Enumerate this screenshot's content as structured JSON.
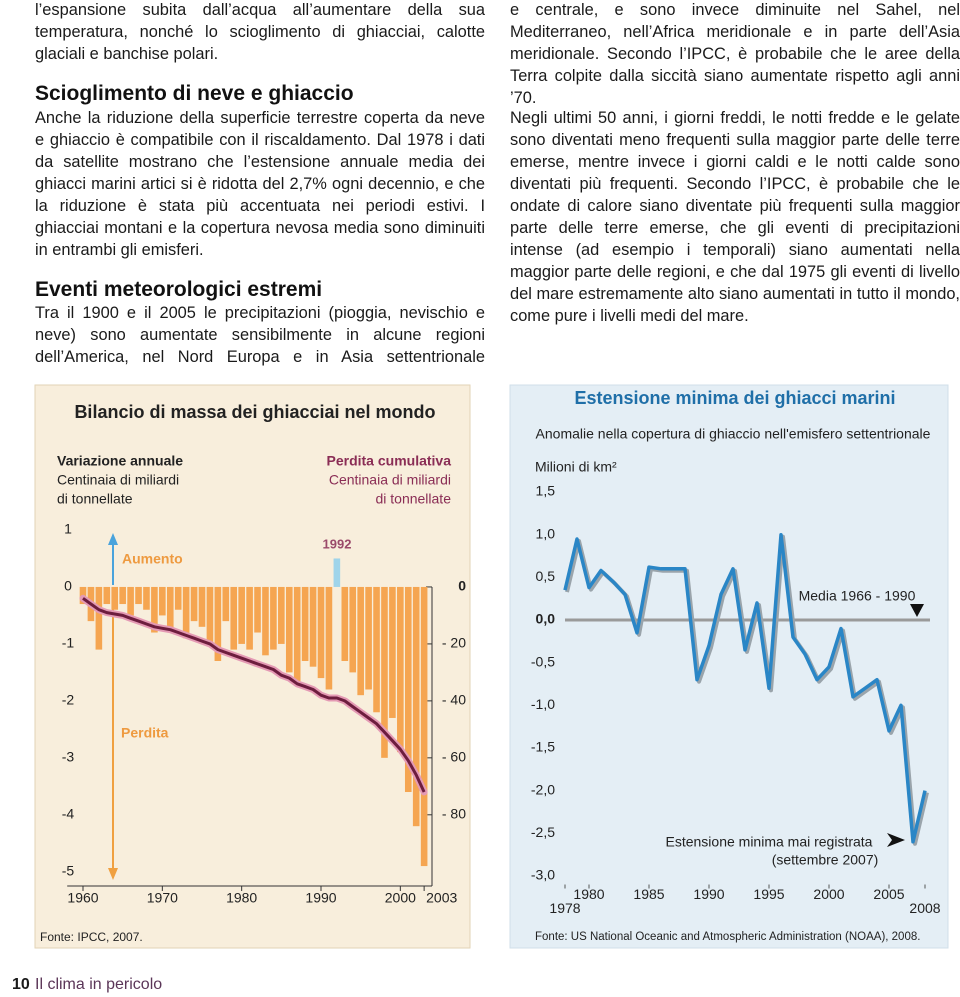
{
  "left_column": {
    "intro": "l’espansione subita dall’acqua all’aumentare della sua temperatura, nonché lo scioglimento di ghiacciai, calotte glaciali e banchise polari.",
    "sections": [
      {
        "heading": "Scioglimento di neve e ghiaccio",
        "text": "Anche la riduzione della superficie terrestre coperta da neve e ghiaccio è compatibile con il riscaldamento. Dal 1978 i dati da satellite mostrano che l’estensione annuale media dei ghiacci marini artici si è ridotta del 2,7% ogni decennio, e che la riduzione è stata più accentuata nei periodi estivi. I ghiacciai montani e la copertura nevosa media sono diminuiti in entrambi gli emisferi."
      },
      {
        "heading": "Eventi meteorologici estremi",
        "text": "Tra il 1900 e il 2005 le precipitazioni (pioggia, nevischio e neve) sono aumentate sensibilmente in alcune regioni dell’America, nel Nord Europa e in Asia settentrionale"
      }
    ]
  },
  "right_column": {
    "paragraphs": [
      "e centrale, e sono invece diminuite nel Sahel, nel Mediterraneo, nell’Africa meridionale e in parte dell’Asia meridionale. Secondo l’IPCC, è probabile che le aree della Terra colpite dalla siccità siano aumentate rispetto agli anni ’70.",
      "Negli ultimi 50 anni, i giorni freddi, le notti fredde e le gelate sono diventati meno frequenti sulla maggior parte delle terre emerse, mentre invece i giorni caldi e le notti calde sono diventati più frequenti. Secondo l’IPCC, è probabile che le ondate di calore siano diventate più frequenti sulla maggior parte delle terre emerse, che gli eventi di precipitazioni intense (ad esempio i temporali) siano aumentati nella maggior parte delle regioni, e che dal 1975 gli eventi di livello del mare estremamente alto siano aumentati in tutto il mondo, come pure i livelli medi del mare."
    ]
  },
  "chart_data": [
    {
      "type": "bar",
      "title": "Bilancio di massa dei ghiacciai nel mondo",
      "y_unit": [
        "Centinaia di miliardi",
        "di tonnellate"
      ],
      "y2_unit": [
        "Centinaia di miliardi",
        "di tonnellate"
      ],
      "x": [
        1960,
        1961,
        1962,
        1963,
        1964,
        1965,
        1966,
        1967,
        1968,
        1969,
        1970,
        1971,
        1972,
        1973,
        1974,
        1975,
        1976,
        1977,
        1978,
        1979,
        1980,
        1981,
        1982,
        1983,
        1984,
        1985,
        1986,
        1987,
        1988,
        1989,
        1990,
        1991,
        1992,
        1993,
        1994,
        1995,
        1996,
        1997,
        1998,
        1999,
        2000,
        2001,
        2002,
        2003
      ],
      "xlim": [
        1957,
        2005
      ],
      "xticks": [
        1960,
        1970,
        1980,
        1990,
        2000,
        2003
      ],
      "ylim": [
        -5.25,
        1.2
      ],
      "yticks": [
        1,
        0,
        -1,
        -2,
        -3,
        -4,
        -5
      ],
      "y2lim": [
        -105,
        24
      ],
      "y2ticks": [
        0,
        {
          "value": -20,
          "label": "- 20"
        },
        {
          "value": -40,
          "label": "- 40"
        },
        {
          "value": -60,
          "label": "- 60"
        },
        {
          "value": -80,
          "label": "- 80"
        }
      ],
      "positive_color": "#9fd4ea",
      "series": [
        {
          "name": "Variazione annuale",
          "color": "#f5a551",
          "values": [
            -0.3,
            -0.6,
            -1.1,
            -0.3,
            -0.4,
            -0.3,
            -0.5,
            -0.3,
            -0.4,
            -0.8,
            -0.5,
            -0.8,
            -0.4,
            -0.9,
            -0.6,
            -0.7,
            -1.0,
            -1.3,
            -0.6,
            -1.1,
            -1.0,
            -1.1,
            -0.8,
            -1.2,
            -1.1,
            -1.0,
            -1.5,
            -1.7,
            -1.3,
            -1.4,
            -1.6,
            -1.8,
            0.5,
            -1.3,
            -1.5,
            -1.9,
            -1.8,
            -2.2,
            -3.0,
            -2.3,
            -2.9,
            -3.6,
            -4.2,
            -4.9
          ]
        },
        {
          "name": "Perdita cumulativa",
          "color": "#6d1d3e",
          "type": "line",
          "axis": "y2",
          "values": [
            -4,
            -6,
            -8,
            -9,
            -9.5,
            -10,
            -11,
            -12,
            -13,
            -14,
            -14.5,
            -15,
            -16,
            -17,
            -18,
            -19,
            -20,
            -22,
            -23,
            -24,
            -25,
            -26,
            -27,
            -28,
            -29,
            -31,
            -32,
            -34,
            -35,
            -36,
            -38,
            -39,
            -39,
            -40,
            -42,
            -44,
            -46,
            -48,
            -51,
            -54,
            -57,
            -61,
            -66,
            -72
          ]
        }
      ],
      "annotations": [
        "Aumento",
        "Perdita",
        "1992"
      ],
      "source": "Fonte: IPCC, 2007."
    },
    {
      "type": "line",
      "title": "Estensione minima dei ghiacci marini",
      "subtitle": "Anomalie nella copertura di ghiaccio nell'emisfero settentrionale",
      "y_label": "Milioni di km²",
      "x": [
        1978,
        1979,
        1980,
        1981,
        1982,
        1983,
        1984,
        1985,
        1986,
        1987,
        1988,
        1989,
        1990,
        1991,
        1992,
        1993,
        1994,
        1995,
        1996,
        1997,
        1998,
        1999,
        2000,
        2001,
        2002,
        2003,
        2004,
        2005,
        2006,
        2007,
        2008
      ],
      "xlim": [
        1978,
        2008
      ],
      "xticks": [
        1978,
        1980,
        1985,
        1990,
        1995,
        2000,
        2005,
        2008
      ],
      "ylim": [
        -3.1,
        1.6
      ],
      "yticks": [
        {
          "value": 1.5,
          "label": "1,5"
        },
        {
          "value": 1,
          "label": "1,0"
        },
        {
          "value": 0.5,
          "label": "0,5"
        },
        {
          "value": 0,
          "label": "0,0"
        },
        {
          "value": -0.5,
          "label": "-0,5"
        },
        {
          "value": -1,
          "label": "-1,0"
        },
        {
          "value": -1.5,
          "label": "-1,5"
        },
        {
          "value": -2,
          "label": "-2,0"
        },
        {
          "value": -2.5,
          "label": "-2,5"
        },
        {
          "value": -3,
          "label": "-3,0"
        }
      ],
      "zero_line": true,
      "series": [
        {
          "color": "#2a86c6",
          "values": [
            0.35,
            0.95,
            0.38,
            0.58,
            0.45,
            0.3,
            -0.15,
            0.62,
            0.6,
            0.6,
            0.6,
            -0.7,
            -0.3,
            0.3,
            0.6,
            -0.35,
            0.2,
            -0.8,
            1.0,
            -0.2,
            -0.4,
            -0.7,
            -0.55,
            -0.1,
            -0.9,
            -0.8,
            -0.7,
            -1.3,
            -1.0,
            -2.6,
            -2.0
          ]
        }
      ],
      "annotations": [
        "Media 1966 - 1990",
        "Estensione minima mai registrata",
        "(settembre 2007)"
      ],
      "source": "Fonte: US National Oceanic and Atmospheric Administration (NOAA), 2008."
    }
  ],
  "footer": {
    "page_number": "10",
    "title": "Il clima in pericolo"
  }
}
